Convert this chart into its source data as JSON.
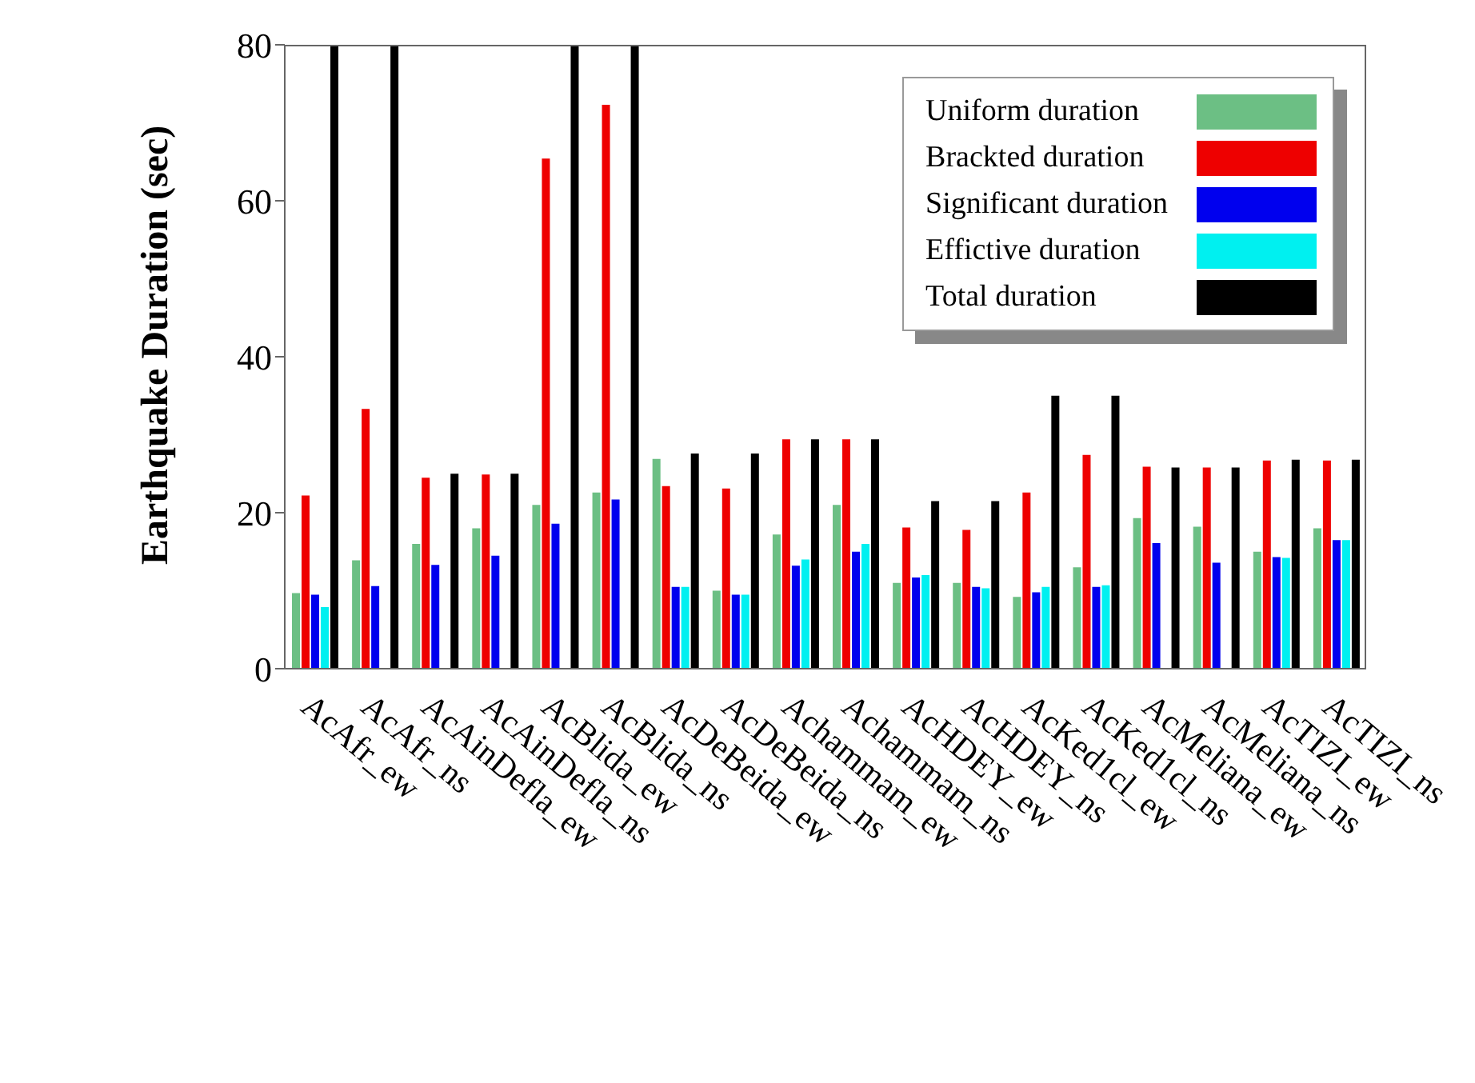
{
  "chart_data": {
    "type": "bar",
    "ylabel": "Earthquake Duration (sec)",
    "categories": [
      "AcAfr_ew",
      "AcAfr_ns",
      "AcAinDefla_ew",
      "AcAinDefla_ns",
      "AcBlida_ew",
      "AcBlida_ns",
      "AcDeBeida_ew",
      "AcDeBeida_ns",
      "Achammam_ew",
      "Achammam_ns",
      "AcHDEY_ew",
      "AcHDEY_ns",
      "AcKed1cl_ew",
      "AcKed1cl_ns",
      "AcMeliana_ew",
      "AcMeliana_ns",
      "AcTIZI_ew",
      "AcTIZI_ns"
    ],
    "series": [
      {
        "name": "Uniform duration",
        "color": "#6cbf84",
        "values": [
          9.7,
          13.9,
          16,
          18,
          21,
          22.6,
          26.9,
          10,
          17.2,
          21,
          11,
          11,
          9.2,
          13,
          19.3,
          18.2,
          15,
          18
        ]
      },
      {
        "name": "Brackted duration",
        "color": "#ee0000",
        "values": [
          22.2,
          33.3,
          24.5,
          24.9,
          65.4,
          72.3,
          23.4,
          23.1,
          29.4,
          29.4,
          18.1,
          17.8,
          22.6,
          27.4,
          25.9,
          25.8,
          26.7,
          26.7
        ]
      },
      {
        "name": "Significant duration",
        "color": "#0000ee",
        "values": [
          9.5,
          10.6,
          13.3,
          14.5,
          18.6,
          21.7,
          10.5,
          9.5,
          13.2,
          15,
          11.7,
          10.5,
          9.8,
          10.5,
          16.1,
          13.6,
          14.3,
          16.5
        ]
      },
      {
        "name": "Effictive duration",
        "color": "#00f0f0",
        "values": [
          7.9,
          null,
          null,
          null,
          null,
          null,
          10.5,
          9.5,
          14,
          16,
          12,
          10.3,
          10.5,
          10.7,
          null,
          null,
          14.2,
          16.5
        ]
      },
      {
        "name": "Total duration",
        "color": "#000000",
        "values": [
          80,
          80,
          25,
          25,
          80,
          80,
          27.6,
          27.6,
          29.4,
          29.4,
          21.5,
          21.5,
          35,
          35,
          25.8,
          25.8,
          26.8,
          26.8
        ]
      }
    ],
    "ylim": [
      0,
      80
    ],
    "yticks": [
      0,
      20,
      40,
      60,
      80
    ],
    "grid": false,
    "legend": "top right"
  }
}
